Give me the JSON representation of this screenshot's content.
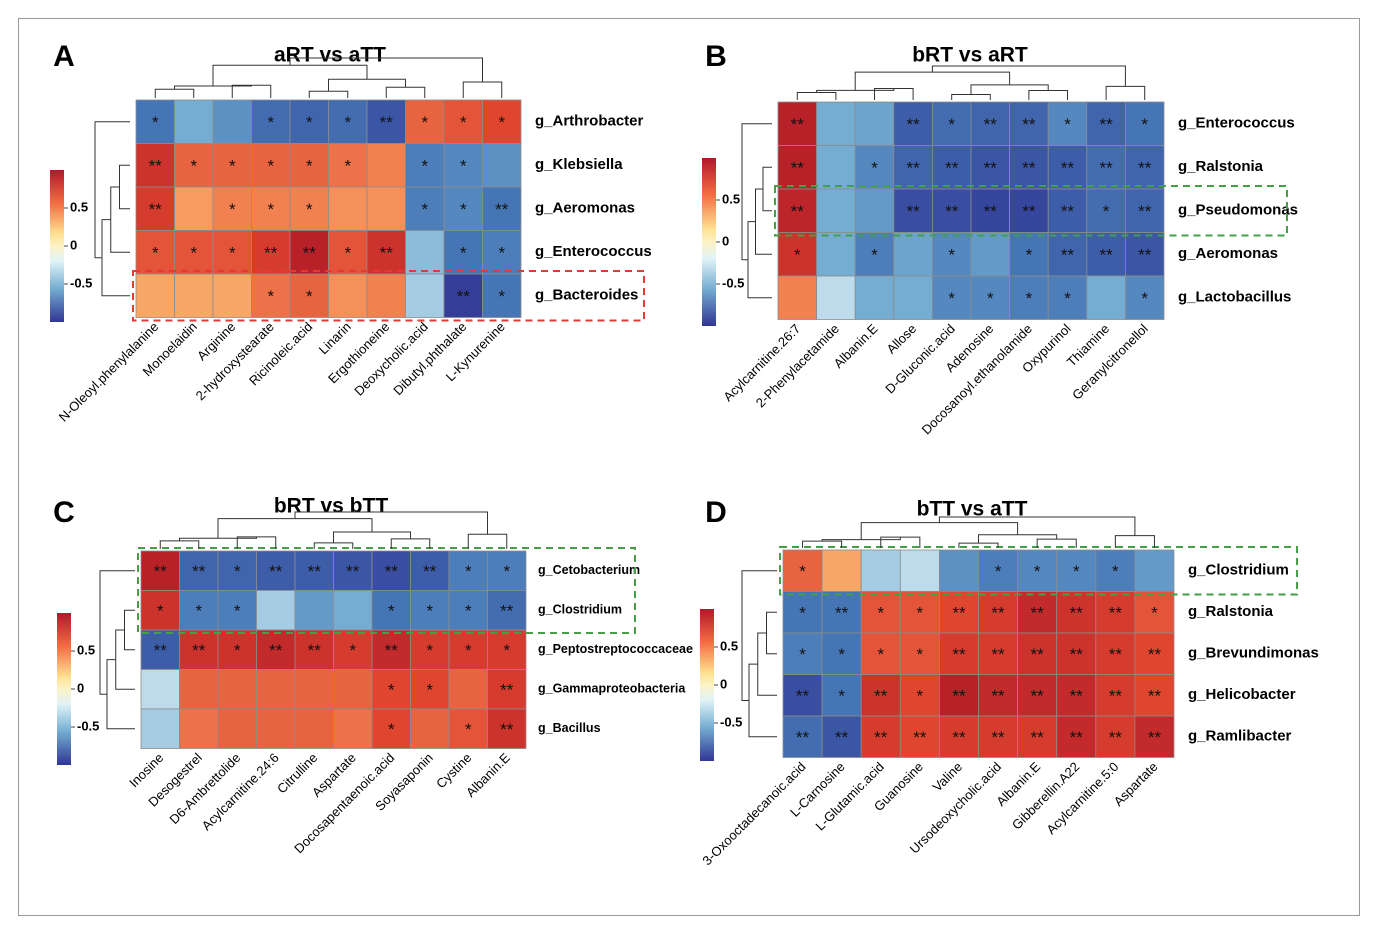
{
  "colors": {
    "high": "#b2182b",
    "mid": "#fdf3c6",
    "low": "#313695",
    "cell_border": "#8c8c8c",
    "line": "#333333"
  },
  "chart_data": [
    {
      "type": "heatmap",
      "panel_label": "A",
      "title": "aRT vs aTT",
      "legend_ticks": [
        "0.5",
        "0",
        "-0.5"
      ],
      "columns": [
        "N-Oleoyl.phenylalanine",
        "Monoelaidin",
        "Arginine",
        "2-hydroxystearate",
        "Ricinoleic.acid",
        "Linarin",
        "Ergothioneine",
        "Deoxycholic.acid",
        "Dibutyl.phthalate",
        "L-Kynurenine"
      ],
      "rows": [
        "g_Arthrobacter",
        "g_Klebsiella",
        "g_Aeromonas",
        "g_Enterococcus",
        "g_Bacteroides"
      ],
      "values": [
        [
          -0.6,
          -0.3,
          -0.45,
          -0.65,
          -0.7,
          -0.65,
          -0.8,
          0.6,
          0.65,
          0.7
        ],
        [
          0.8,
          0.6,
          0.6,
          0.6,
          0.6,
          0.55,
          0.5,
          -0.55,
          -0.5,
          -0.45
        ],
        [
          0.75,
          0.4,
          0.5,
          0.5,
          0.5,
          0.45,
          0.45,
          -0.55,
          -0.5,
          -0.6
        ],
        [
          0.65,
          0.65,
          0.65,
          0.75,
          0.9,
          0.65,
          0.8,
          -0.25,
          -0.6,
          -0.55
        ],
        [
          0.35,
          0.35,
          0.35,
          0.55,
          0.6,
          0.45,
          0.5,
          -0.2,
          -0.95,
          -0.6
        ]
      ],
      "stars": [
        [
          "*",
          "",
          "",
          "*",
          "*",
          "*",
          "**",
          "*",
          "*",
          "*"
        ],
        [
          "**",
          "*",
          "*",
          "*",
          "*",
          "*",
          "",
          "*",
          "*",
          ""
        ],
        [
          "**",
          "",
          "*",
          "*",
          "*",
          "",
          "",
          "*",
          "*",
          "**"
        ],
        [
          "*",
          "*",
          "*",
          "**",
          "**",
          "*",
          "**",
          "",
          "*",
          "*"
        ],
        [
          "",
          "",
          "",
          "*",
          "*",
          "",
          "",
          "",
          "**",
          "*"
        ]
      ],
      "highlight": {
        "row": 4,
        "color": "#e53935"
      }
    },
    {
      "type": "heatmap",
      "panel_label": "B",
      "title": "bRT vs aRT",
      "legend_ticks": [
        "0.5",
        "0",
        "-0.5"
      ],
      "columns": [
        "Acylcarnitine.26:7",
        "2-Phenylacetamide",
        "Albanin.E",
        "Allose",
        "D-Gluconic.acid",
        "Adenosine",
        "Docosanoyl.ethanolamide",
        "Oxypurinol",
        "Thiamine",
        "Geranylcitronellol"
      ],
      "rows": [
        "g_Enterococcus",
        "g_Ralstonia",
        "g_Pseudomonas",
        "g_Aeromonas",
        "g_Lactobacillus"
      ],
      "values": [
        [
          0.9,
          -0.3,
          -0.35,
          -0.75,
          -0.65,
          -0.7,
          -0.7,
          -0.5,
          -0.7,
          -0.6
        ],
        [
          0.9,
          -0.3,
          -0.5,
          -0.7,
          -0.75,
          -0.8,
          -0.8,
          -0.75,
          -0.65,
          -0.7
        ],
        [
          0.88,
          -0.3,
          -0.4,
          -0.85,
          -0.85,
          -0.9,
          -0.9,
          -0.75,
          -0.65,
          -0.7
        ],
        [
          0.8,
          -0.3,
          -0.55,
          -0.35,
          -0.5,
          -0.4,
          -0.6,
          -0.7,
          -0.75,
          -0.8
        ],
        [
          0.5,
          -0.15,
          -0.3,
          -0.3,
          -0.5,
          -0.5,
          -0.55,
          -0.55,
          -0.3,
          -0.5
        ]
      ],
      "stars": [
        [
          "**",
          "",
          "",
          "**",
          "*",
          "**",
          "**",
          "*",
          "**",
          "*"
        ],
        [
          "**",
          "",
          "*",
          "**",
          "**",
          "**",
          "**",
          "**",
          "**",
          "**"
        ],
        [
          "**",
          "",
          "",
          "**",
          "**",
          "**",
          "**",
          "**",
          "*",
          "**"
        ],
        [
          "*",
          "",
          "*",
          "",
          "*",
          "",
          "*",
          "**",
          "**",
          "**"
        ],
        [
          "",
          "",
          "",
          "",
          "*",
          "*",
          "*",
          "*",
          "",
          "*"
        ]
      ],
      "highlight": {
        "row": 2,
        "color": "#43a047"
      }
    },
    {
      "type": "heatmap",
      "panel_label": "C",
      "title": "bRT vs bTT",
      "legend_ticks": [
        "0.5",
        "0",
        "-0.5"
      ],
      "columns": [
        "Inosine",
        "Desogestrel",
        "D6-Ambrettolide",
        "Acylcarnitine.24:6",
        "Citrulline",
        "Aspartate",
        "Docosapentaenoic.acid",
        "Soyasaponin",
        "Cystine",
        "Albanin.E"
      ],
      "rows": [
        "g_Cetobacterium",
        "g_Clostridium",
        "g_Peptostreptococcaceae",
        "g_Gammaproteobacteria",
        "g_Bacillus"
      ],
      "values": [
        [
          0.9,
          -0.7,
          -0.7,
          -0.75,
          -0.75,
          -0.8,
          -0.85,
          -0.75,
          -0.55,
          -0.55
        ],
        [
          0.8,
          -0.55,
          -0.55,
          -0.2,
          -0.4,
          -0.3,
          -0.6,
          -0.55,
          -0.55,
          -0.65
        ],
        [
          -0.75,
          0.8,
          0.8,
          0.85,
          0.8,
          0.75,
          0.85,
          0.75,
          0.75,
          0.75
        ],
        [
          -0.15,
          0.6,
          0.6,
          0.6,
          0.6,
          0.6,
          0.7,
          0.7,
          0.6,
          0.75
        ],
        [
          -0.2,
          0.55,
          0.6,
          0.6,
          0.6,
          0.55,
          0.7,
          0.6,
          0.65,
          0.8
        ]
      ],
      "stars": [
        [
          "**",
          "**",
          "*",
          "**",
          "**",
          "**",
          "**",
          "**",
          "*",
          "*"
        ],
        [
          "*",
          "*",
          "*",
          "",
          "",
          "",
          "*",
          "*",
          "*",
          "**"
        ],
        [
          "**",
          "**",
          "*",
          "**",
          "**",
          "*",
          "**",
          "*",
          "*",
          "*"
        ],
        [
          "",
          "",
          "",
          "",
          "",
          "",
          "*",
          "*",
          "",
          "**"
        ],
        [
          "",
          "",
          "",
          "",
          "",
          "",
          "*",
          "",
          "*",
          "**"
        ]
      ],
      "highlight": {
        "rows": [
          0,
          1
        ],
        "color": "#43a047"
      }
    },
    {
      "type": "heatmap",
      "panel_label": "D",
      "title": "bTT vs aTT",
      "legend_ticks": [
        "0.5",
        "0",
        "-0.5"
      ],
      "columns": [
        "3-Oxooctadecanoic.acid",
        "L-Carnosine",
        "L-Glutamic.acid",
        "Guanosine",
        "Valine",
        "Ursodeoxycholic.acid",
        "Albanin.E",
        "Gibberellin.A22",
        "Acylcarnitine.5:0",
        "Aspartate"
      ],
      "rows": [
        "g_Clostridium",
        "g_Ralstonia",
        "g_Brevundimonas",
        "g_Helicobacter",
        "g_Ramlibacter"
      ],
      "values": [
        [
          0.6,
          0.35,
          -0.2,
          -0.15,
          -0.45,
          -0.55,
          -0.5,
          -0.5,
          -0.55,
          -0.4
        ],
        [
          -0.6,
          -0.6,
          0.65,
          0.65,
          0.7,
          0.75,
          0.85,
          0.8,
          0.75,
          0.65
        ],
        [
          -0.55,
          -0.6,
          0.65,
          0.65,
          0.75,
          0.75,
          0.8,
          0.8,
          0.75,
          0.7
        ],
        [
          -0.85,
          -0.6,
          0.8,
          0.7,
          0.9,
          0.85,
          0.85,
          0.85,
          0.75,
          0.7
        ],
        [
          -0.65,
          -0.8,
          0.75,
          0.7,
          0.75,
          0.75,
          0.75,
          0.85,
          0.75,
          0.85
        ]
      ],
      "stars": [
        [
          "*",
          "",
          "",
          "",
          "",
          "*",
          "*",
          "*",
          "*",
          ""
        ],
        [
          "*",
          "**",
          "*",
          "*",
          "**",
          "**",
          "**",
          "**",
          "**",
          "*"
        ],
        [
          "*",
          "*",
          "*",
          "*",
          "**",
          "**",
          "**",
          "**",
          "**",
          "**"
        ],
        [
          "**",
          "*",
          "**",
          "*",
          "**",
          "**",
          "**",
          "**",
          "**",
          "**"
        ],
        [
          "**",
          "**",
          "**",
          "**",
          "**",
          "**",
          "**",
          "**",
          "**",
          "**"
        ]
      ],
      "highlight": {
        "row": 0,
        "color": "#43a047"
      }
    }
  ]
}
